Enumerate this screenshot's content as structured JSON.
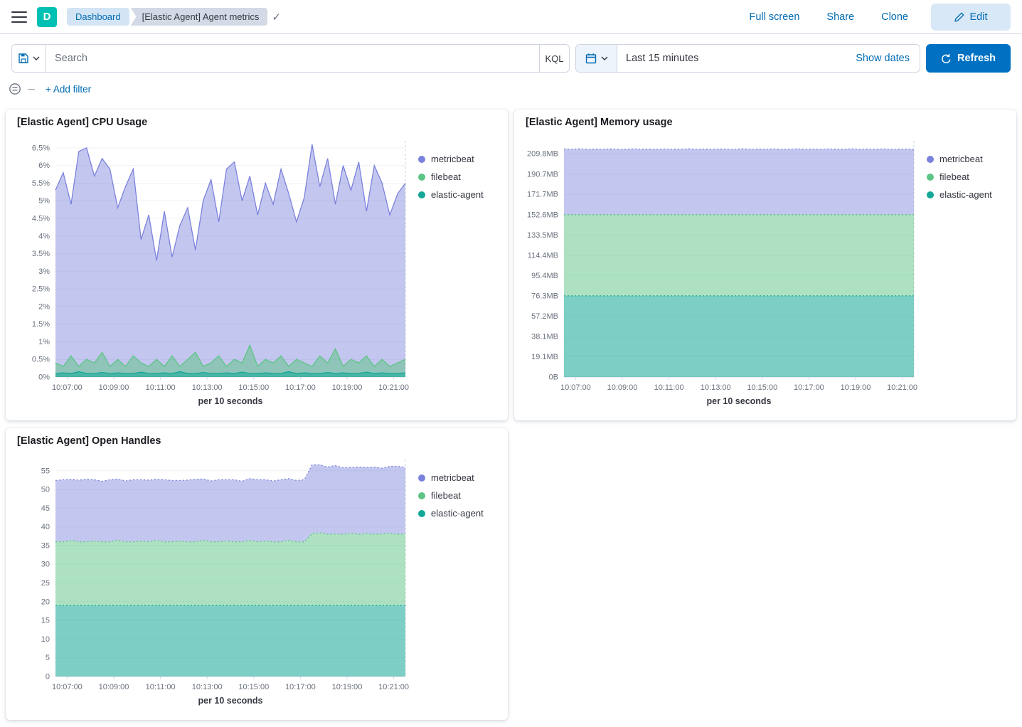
{
  "header": {
    "logo_letter": "D",
    "breadcrumbs": [
      "Dashboard",
      "[Elastic Agent] Agent metrics"
    ],
    "links": [
      "Full screen",
      "Share",
      "Clone"
    ],
    "edit_label": "Edit"
  },
  "query": {
    "search_placeholder": "Search",
    "kql": "KQL",
    "time_range": "Last 15 minutes",
    "show_dates": "Show dates",
    "refresh": "Refresh",
    "add_filter": "+ Add filter"
  },
  "colors": {
    "primary_blue": "#0071c2",
    "link_blue": "#006bb4",
    "logo_teal": "#00bfb3"
  },
  "chart_data": [
    {
      "type": "area",
      "stacked": false,
      "dashed": false,
      "title": "[Elastic Agent] CPU Usage",
      "xlabel": "per 10 seconds",
      "n_points": 46,
      "y_max": 6.7,
      "y_ticks": [
        {
          "v": 0,
          "label": "0%"
        },
        {
          "v": 0.5,
          "label": "0.5%"
        },
        {
          "v": 1,
          "label": "1%"
        },
        {
          "v": 1.5,
          "label": "1.5%"
        },
        {
          "v": 2,
          "label": "2%"
        },
        {
          "v": 2.5,
          "label": "2.5%"
        },
        {
          "v": 3,
          "label": "3%"
        },
        {
          "v": 3.5,
          "label": "3.5%"
        },
        {
          "v": 4,
          "label": "4%"
        },
        {
          "v": 4.5,
          "label": "4.5%"
        },
        {
          "v": 5,
          "label": "5%"
        },
        {
          "v": 5.5,
          "label": "5.5%"
        },
        {
          "v": 6,
          "label": "6%"
        },
        {
          "v": 6.5,
          "label": "6.5%"
        }
      ],
      "x_ticks": [
        "10:07:00",
        "10:09:00",
        "10:11:00",
        "10:13:00",
        "10:15:00",
        "10:17:00",
        "10:19:00",
        "10:21:00"
      ],
      "series": [
        {
          "name": "metricbeat",
          "color": "#7b82dc",
          "fill": "rgba(123,130,220,0.45)",
          "values": [
            5.3,
            5.8,
            4.9,
            6.4,
            6.5,
            5.7,
            6.2,
            5.9,
            4.8,
            5.4,
            5.9,
            3.9,
            4.6,
            3.3,
            4.7,
            3.4,
            4.3,
            4.8,
            3.6,
            5.0,
            5.6,
            4.4,
            5.9,
            6.1,
            5.0,
            5.7,
            4.6,
            5.5,
            4.9,
            5.9,
            5.2,
            4.4,
            5.1,
            6.6,
            5.4,
            6.2,
            4.9,
            6.0,
            5.3,
            6.1,
            4.7,
            6.0,
            5.5,
            4.6,
            5.2,
            5.5
          ]
        },
        {
          "name": "filebeat",
          "color": "#5cc484",
          "fill": "rgba(92,196,132,0.5)",
          "values": [
            0.4,
            0.3,
            0.6,
            0.3,
            0.5,
            0.4,
            0.7,
            0.3,
            0.5,
            0.3,
            0.6,
            0.4,
            0.3,
            0.5,
            0.3,
            0.6,
            0.3,
            0.5,
            0.7,
            0.3,
            0.4,
            0.6,
            0.3,
            0.5,
            0.4,
            0.9,
            0.3,
            0.5,
            0.4,
            0.6,
            0.3,
            0.5,
            0.4,
            0.3,
            0.6,
            0.4,
            0.8,
            0.3,
            0.5,
            0.4,
            0.6,
            0.3,
            0.5,
            0.3,
            0.4,
            0.5
          ]
        },
        {
          "name": "elastic-agent",
          "color": "#12a797",
          "fill": "rgba(18,167,151,0.55)",
          "values": [
            0.1,
            0.12,
            0.1,
            0.15,
            0.1,
            0.1,
            0.13,
            0.1,
            0.12,
            0.1,
            0.1,
            0.14,
            0.1,
            0.1,
            0.12,
            0.1,
            0.15,
            0.1,
            0.1,
            0.13,
            0.1,
            0.1,
            0.12,
            0.1,
            0.14,
            0.1,
            0.1,
            0.12,
            0.1,
            0.1,
            0.15,
            0.1,
            0.12,
            0.1,
            0.1,
            0.13,
            0.1,
            0.12,
            0.1,
            0.1,
            0.14,
            0.1,
            0.12,
            0.1,
            0.1,
            0.12
          ]
        }
      ]
    },
    {
      "type": "area",
      "stacked": true,
      "dashed": true,
      "title": "[Elastic Agent] Memory usage",
      "xlabel": "per 10 seconds",
      "n_points": 46,
      "y_max": 222,
      "y_ticks": [
        {
          "v": 0,
          "label": "0B"
        },
        {
          "v": 19.1,
          "label": "19.1MB"
        },
        {
          "v": 38.1,
          "label": "38.1MB"
        },
        {
          "v": 57.2,
          "label": "57.2MB"
        },
        {
          "v": 76.3,
          "label": "76.3MB"
        },
        {
          "v": 95.4,
          "label": "95.4MB"
        },
        {
          "v": 114.4,
          "label": "114.4MB"
        },
        {
          "v": 133.5,
          "label": "133.5MB"
        },
        {
          "v": 152.6,
          "label": "152.6MB"
        },
        {
          "v": 171.7,
          "label": "171.7MB"
        },
        {
          "v": 190.7,
          "label": "190.7MB"
        },
        {
          "v": 209.8,
          "label": "209.8MB"
        }
      ],
      "x_ticks": [
        "10:07:00",
        "10:09:00",
        "10:11:00",
        "10:13:00",
        "10:15:00",
        "10:17:00",
        "10:19:00",
        "10:21:00"
      ],
      "series": [
        {
          "name": "metricbeat",
          "color": "#7b82dc",
          "fill": "rgba(123,130,220,0.45)",
          "values": [
            61.8,
            61.6,
            61.9,
            61.5,
            61.7,
            61.6,
            61.8,
            61.5,
            61.6,
            61.9,
            61.6,
            61.7,
            61.5,
            61.8,
            61.6,
            61.6,
            61.9,
            61.5,
            61.7,
            61.6,
            61.8,
            61.6,
            61.5,
            61.9,
            61.6,
            61.7,
            61.6,
            61.8,
            61.5,
            61.6,
            61.9,
            61.6,
            61.7,
            61.5,
            61.8,
            61.6,
            61.6,
            61.9,
            61.5,
            61.7,
            61.6,
            61.8,
            61.5,
            61.6,
            61.7,
            61.6
          ]
        },
        {
          "name": "filebeat",
          "color": "#5cc484",
          "fill": "rgba(92,196,132,0.5)",
          "constant": 76.3
        },
        {
          "name": "elastic-agent",
          "color": "#12a797",
          "fill": "rgba(18,167,151,0.55)",
          "constant": 76.3
        }
      ]
    },
    {
      "type": "area",
      "stacked": true,
      "dashed": true,
      "title": "[Elastic Agent] Open Handles",
      "xlabel": "per 10 seconds",
      "n_points": 46,
      "y_max": 58,
      "y_ticks": [
        {
          "v": 0,
          "label": "0"
        },
        {
          "v": 5,
          "label": "5"
        },
        {
          "v": 10,
          "label": "10"
        },
        {
          "v": 15,
          "label": "15"
        },
        {
          "v": 20,
          "label": "20"
        },
        {
          "v": 25,
          "label": "25"
        },
        {
          "v": 30,
          "label": "30"
        },
        {
          "v": 35,
          "label": "35"
        },
        {
          "v": 40,
          "label": "40"
        },
        {
          "v": 45,
          "label": "45"
        },
        {
          "v": 50,
          "label": "50"
        },
        {
          "v": 55,
          "label": "55"
        }
      ],
      "x_ticks": [
        "10:07:00",
        "10:09:00",
        "10:11:00",
        "10:13:00",
        "10:15:00",
        "10:17:00",
        "10:19:00",
        "10:21:00"
      ],
      "series": [
        {
          "name": "metricbeat",
          "color": "#7b82dc",
          "fill": "rgba(123,130,220,0.45)",
          "values": [
            16.4,
            16.6,
            16.3,
            16.5,
            16.7,
            16.4,
            16.2,
            16.6,
            16.4,
            16.3,
            16.6,
            16.4,
            16.5,
            16.3,
            16.6,
            16.4,
            16.2,
            16.5,
            16.7,
            16.4,
            16.3,
            16.6,
            16.4,
            16.6,
            16.2,
            16.5,
            16.6,
            16.4,
            16.3,
            16.6,
            16.5,
            16.4,
            16.6,
            18.4,
            18.2,
            18.0,
            18.3,
            17.8,
            17.6,
            18.0,
            17.7,
            18.0,
            17.6,
            17.9,
            18.2,
            17.8
          ]
        },
        {
          "name": "filebeat",
          "color": "#5cc484",
          "fill": "rgba(92,196,132,0.5)",
          "values": [
            17,
            17,
            17.4,
            17,
            17,
            17.2,
            17,
            17,
            17.4,
            17,
            17,
            17.2,
            17,
            17.4,
            17,
            17,
            17.2,
            17,
            17,
            17.4,
            17,
            17,
            17.2,
            17,
            17,
            17.4,
            17,
            17.2,
            17,
            17,
            17.4,
            17,
            17,
            19.2,
            19.4,
            19,
            19.1,
            19,
            19.3,
            19,
            19.2,
            19,
            19.1,
            19.3,
            19,
            19.1
          ]
        },
        {
          "name": "elastic-agent",
          "color": "#12a797",
          "fill": "rgba(18,167,151,0.55)",
          "constant": 19
        }
      ]
    }
  ]
}
